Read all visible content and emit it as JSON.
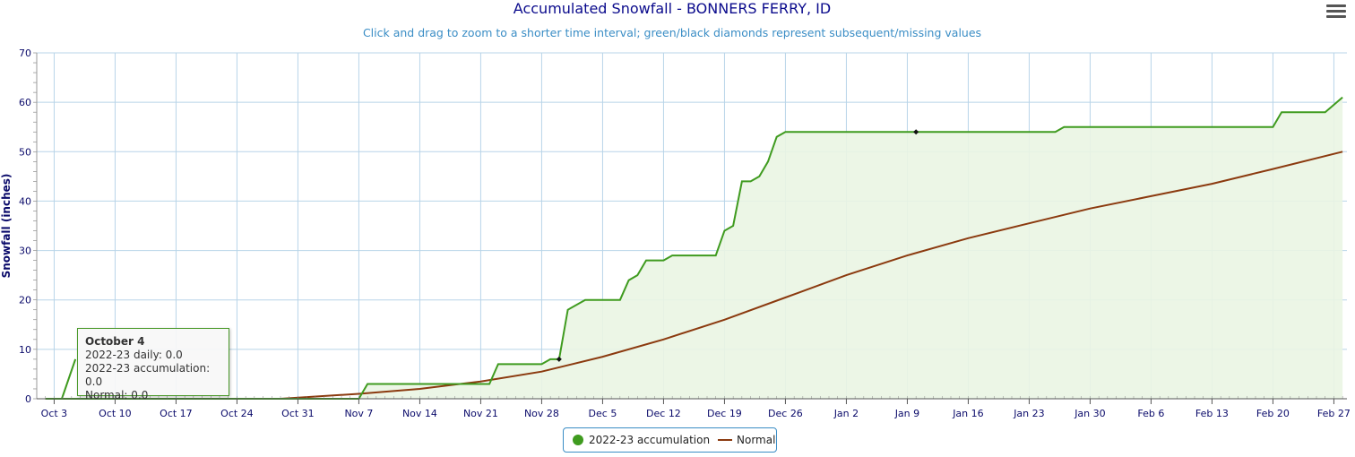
{
  "title": "Accumulated Snowfall - BONNERS FERRY, ID",
  "subtitle": "Click and drag to zoom to a shorter time interval; green/black diamonds represent subsequent/missing values",
  "menu_icon": "hamburger-menu-icon",
  "colors": {
    "accumulation": "#3f9b1f",
    "accumulation_fill": "#eaf5e3",
    "normal": "#8b3a0f",
    "grid": "#b8d4e8",
    "axis_text": "#0a0a6a",
    "subtitle": "#3a8dc5"
  },
  "tooltip": {
    "title": "October 4",
    "daily": "2022-23 daily: 0.0",
    "accumulation": "2022-23 accumulation: 0.0",
    "normal": "Normal: 0.0"
  },
  "legend": [
    {
      "label": "2022-23 accumulation",
      "marker": "circle"
    },
    {
      "label": "Normal",
      "marker": "line"
    }
  ],
  "chart_data": {
    "type": "area",
    "title": "Accumulated Snowfall - BONNERS FERRY, ID",
    "ylabel": "Snowfall (inches)",
    "ylim": [
      0,
      70
    ],
    "yticks": [
      0,
      10,
      20,
      30,
      40,
      50,
      60,
      70
    ],
    "xlim": [
      "2022-10-01",
      "2023-02-28"
    ],
    "xticks": [
      "Oct 3",
      "Oct 10",
      "Oct 17",
      "Oct 24",
      "Oct 31",
      "Nov 7",
      "Nov 14",
      "Nov 21",
      "Nov 28",
      "Dec 5",
      "Dec 12",
      "Dec 19",
      "Dec 26",
      "Jan 2",
      "Jan 9",
      "Jan 16",
      "Jan 23",
      "Jan 30",
      "Feb 6",
      "Feb 13",
      "Feb 20",
      "Feb 27"
    ],
    "xtick_dates": [
      "2022-10-03",
      "2022-10-10",
      "2022-10-17",
      "2022-10-24",
      "2022-10-31",
      "2022-11-07",
      "2022-11-14",
      "2022-11-21",
      "2022-11-28",
      "2022-12-05",
      "2022-12-12",
      "2022-12-19",
      "2022-12-26",
      "2023-01-02",
      "2023-01-09",
      "2023-01-16",
      "2023-01-23",
      "2023-01-30",
      "2023-02-06",
      "2023-02-13",
      "2023-02-20",
      "2023-02-27"
    ],
    "grid": true,
    "legend_position": "bottom-center",
    "series": [
      {
        "name": "2022-23 accumulation",
        "fill": true,
        "points": [
          [
            "2022-10-02",
            0
          ],
          [
            "2022-11-07",
            0
          ],
          [
            "2022-11-08",
            3
          ],
          [
            "2022-11-22",
            3
          ],
          [
            "2022-11-23",
            7
          ],
          [
            "2022-11-28",
            7
          ],
          [
            "2022-11-29",
            8
          ],
          [
            "2022-11-30",
            8
          ],
          [
            "2022-12-01",
            18
          ],
          [
            "2022-12-03",
            20
          ],
          [
            "2022-12-07",
            20
          ],
          [
            "2022-12-08",
            24
          ],
          [
            "2022-12-09",
            25
          ],
          [
            "2022-12-10",
            28
          ],
          [
            "2022-12-12",
            28
          ],
          [
            "2022-12-13",
            29
          ],
          [
            "2022-12-18",
            29
          ],
          [
            "2022-12-19",
            34
          ],
          [
            "2022-12-20",
            35
          ],
          [
            "2022-12-21",
            44
          ],
          [
            "2022-12-22",
            44
          ],
          [
            "2022-12-23",
            45
          ],
          [
            "2022-12-24",
            48
          ],
          [
            "2022-12-25",
            53
          ],
          [
            "2022-12-26",
            54
          ],
          [
            "2023-01-26",
            54
          ],
          [
            "2023-01-27",
            55
          ],
          [
            "2023-02-20",
            55
          ],
          [
            "2023-02-21",
            58
          ],
          [
            "2023-02-26",
            58
          ],
          [
            "2023-02-28",
            61
          ]
        ],
        "missing_markers": [
          [
            "2022-11-30",
            8
          ],
          [
            "2023-01-10",
            54
          ]
        ]
      },
      {
        "name": "Normal",
        "fill": false,
        "points": [
          [
            "2022-10-02",
            0
          ],
          [
            "2022-10-29",
            0
          ],
          [
            "2022-11-07",
            1
          ],
          [
            "2022-11-14",
            2
          ],
          [
            "2022-11-21",
            3.5
          ],
          [
            "2022-11-28",
            5.5
          ],
          [
            "2022-12-05",
            8.5
          ],
          [
            "2022-12-12",
            12
          ],
          [
            "2022-12-19",
            16
          ],
          [
            "2022-12-26",
            20.5
          ],
          [
            "2023-01-02",
            25
          ],
          [
            "2023-01-09",
            29
          ],
          [
            "2023-01-16",
            32.5
          ],
          [
            "2023-01-23",
            35.5
          ],
          [
            "2023-01-30",
            38.5
          ],
          [
            "2023-02-06",
            41
          ],
          [
            "2023-02-13",
            43.5
          ],
          [
            "2023-02-20",
            46.5
          ],
          [
            "2023-02-28",
            50
          ]
        ]
      }
    ],
    "annotations": [
      "October 4 tooltip: 2022-23 daily: 0.0, 2022-23 accumulation: 0.0, Normal: 0.0"
    ]
  }
}
